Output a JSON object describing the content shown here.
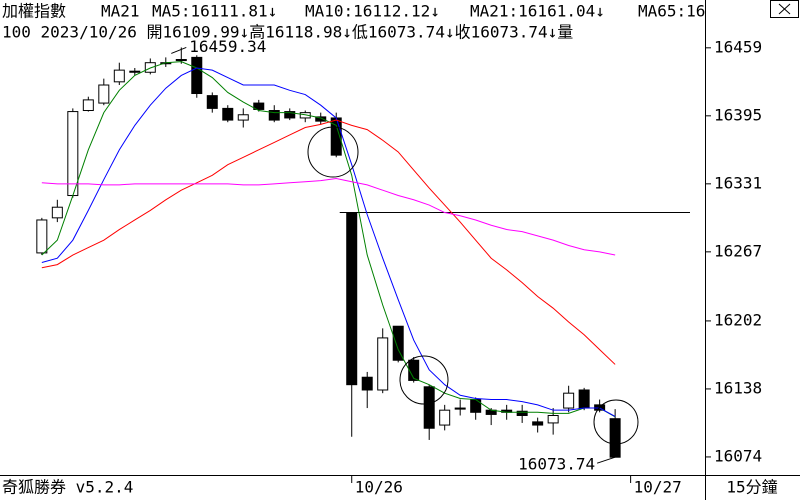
{
  "chart_data": {
    "type": "candlestick",
    "title": "加權指數",
    "subtitle": "MA21",
    "info": "100 2023/10/26 開16109.99↓高16118.98↓低16073.74↓收16073.74↓量",
    "footer_left": "奇狐勝券 v5.2.4",
    "footer_right": "15分鐘",
    "categories": [
      null,
      null,
      null,
      null,
      null,
      null,
      null,
      null,
      null,
      null,
      null,
      null,
      null,
      null,
      null,
      null,
      null,
      null,
      null,
      null,
      null,
      null,
      null,
      null,
      null,
      null,
      null,
      null,
      null,
      null,
      null,
      null,
      null,
      null,
      null,
      null,
      null,
      null
    ],
    "xlim": [
      -2.7,
      42.8
    ],
    "xticks": [
      {
        "value": 20,
        "label": "10/26"
      },
      {
        "value": 38,
        "label": "10/27"
      }
    ],
    "ylim": [
      16057,
      16504
    ],
    "yticks": [
      16459,
      16395,
      16331,
      16267,
      16202,
      16138,
      16074
    ],
    "ohlc": {
      "open": [
        16266,
        16299,
        16320,
        16400,
        16407,
        16427,
        16437,
        16436,
        16445,
        16448,
        16450,
        16414,
        16402,
        16391,
        16407,
        16400,
        16399,
        16393,
        16394,
        16393,
        16304,
        16149,
        16137,
        16197,
        16165,
        16140,
        16104,
        16120,
        16128,
        16118,
        16118,
        16117,
        16107,
        16106,
        16120,
        16137,
        16123,
        16109.99
      ],
      "high": [
        16299,
        16316,
        16402,
        16413,
        16430,
        16445,
        16440,
        16449,
        16450,
        16459.34,
        16452,
        16417,
        16405,
        16402,
        16410,
        16405,
        16402,
        16400,
        16398,
        16398,
        16304,
        16154,
        16195,
        16197,
        16168,
        16142,
        16123,
        16128,
        16130,
        16120,
        16123,
        16123,
        16111,
        16120,
        16141,
        16139,
        16128,
        16118.98
      ],
      "low": [
        16264,
        16295,
        16318,
        16399,
        16405,
        16424,
        16433,
        16434,
        16441,
        16444,
        16412,
        16398,
        16389,
        16384,
        16399,
        16389,
        16391,
        16389,
        16387,
        16356,
        16093,
        16120,
        16134,
        16163,
        16144,
        16090,
        16099,
        16113,
        16109,
        16104,
        16109,
        16106,
        16097,
        16095,
        16116,
        16118,
        16116,
        16073.74
      ],
      "close": [
        16297,
        16309,
        16399,
        16410,
        16424,
        16438,
        16436,
        16445,
        16444,
        16447,
        16416,
        16402,
        16391,
        16396,
        16401,
        16391,
        16393,
        16398,
        16390,
        16358,
        16142,
        16137,
        16186,
        16165,
        16146,
        16101,
        16118,
        16119,
        16116,
        16114,
        16116,
        16113,
        16104,
        16113,
        16134,
        16120,
        16118,
        16073.74
      ],
      "up_color": "#ffffff",
      "down_color": "#000000"
    },
    "series": [
      {
        "label": "MA5:16111.81↓",
        "color": "#008000",
        "values": [
          16264,
          16278,
          16320,
          16363,
          16398,
          16419,
          16433,
          16440,
          16445,
          16446,
          16440,
          16431,
          16417,
          16408,
          16400,
          16398,
          16398,
          16396,
          16393,
          16386,
          16339,
          16264,
          16217,
          16175,
          16148,
          16142,
          16134,
          16129,
          16128,
          16118,
          16116,
          16116,
          16116,
          16115,
          16115,
          16120,
          16120,
          16111.81
        ]
      },
      {
        "label": "MA10:16112.12↓",
        "color": "#0000ff",
        "values": [
          16257,
          16261,
          16278,
          16306,
          16335,
          16363,
          16386,
          16405,
          16421,
          16433,
          16440,
          16438,
          16431,
          16424,
          16424,
          16424,
          16419,
          16415,
          16405,
          16393,
          16349,
          16302,
          16261,
          16222,
          16184,
          16156,
          16142,
          16132,
          16129,
          16128,
          16128,
          16126,
          16123,
          16118,
          16118,
          16120,
          16120,
          16112.12
        ]
      },
      {
        "label": "MA21:16161.04↓",
        "color": "#ff0000",
        "values": [
          16252,
          16255,
          16264,
          16271,
          16278,
          16288,
          16297,
          16306,
          16316,
          16325,
          16332,
          16339,
          16349,
          16356,
          16363,
          16370,
          16377,
          16384,
          16387,
          16391,
          16386,
          16382,
          16372,
          16361,
          16344,
          16327,
          16311,
          16295,
          16278,
          16261,
          16250,
          16238,
          16225,
          16214,
          16201,
          16189,
          16175,
          16161.04
        ]
      },
      {
        "label": "MA65:16",
        "color": "#ff00ff",
        "values": [
          16332,
          16331,
          16331,
          16331,
          16330,
          16330,
          16331,
          16331,
          16331,
          16331,
          16331,
          16331,
          16331,
          16330,
          16330,
          16331,
          16332,
          16333,
          16334,
          16336,
          16333,
          16330,
          16325,
          16320,
          16316,
          16311,
          16304,
          16301,
          16297,
          16292,
          16288,
          16286,
          16282,
          16278,
          16273,
          16269,
          16267,
          16264
        ]
      }
    ],
    "reference_line": 16304,
    "high_label": 16459.34,
    "low_label": 16073.74
  }
}
